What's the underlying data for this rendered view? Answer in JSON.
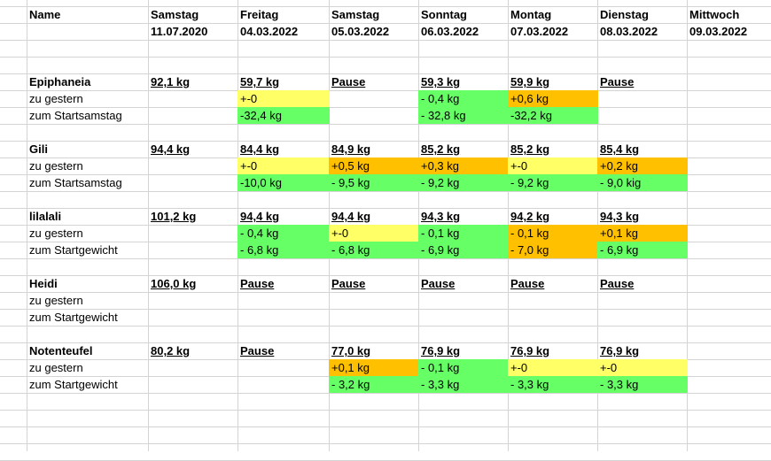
{
  "header": {
    "name": "Name",
    "days": [
      "Samstag",
      "Freitag",
      "Samstag",
      "Sonntag",
      "Montag",
      "Dienstag",
      "Mittwoch"
    ],
    "dates": [
      "11.07.2020",
      "04.03.2022",
      "05.03.2022",
      "06.03.2022",
      "07.03.2022",
      "08.03.2022",
      "09.03.2022"
    ]
  },
  "fill_colors": {
    "green": "#66ff66",
    "yellow": "#ffff66",
    "orange": "#ffc000"
  },
  "groups": [
    {
      "name": "Epiphaneia",
      "values": [
        "92,1 kg",
        "59,7 kg",
        "Pause",
        "59,3 kg",
        "59,9 kg",
        "Pause",
        ""
      ],
      "rows": [
        {
          "label": "zu gestern",
          "cells": [
            "",
            "+-0",
            "",
            "- 0,4 kg",
            "+0,6 kg",
            "",
            ""
          ],
          "fills": [
            "",
            "yellow",
            "",
            "green",
            "orange",
            "",
            ""
          ]
        },
        {
          "label": "zum Startsamstag",
          "cells": [
            "",
            "-32,4 kg",
            "",
            "- 32,8 kg",
            "-32,2 kg",
            "",
            ""
          ],
          "fills": [
            "",
            "green",
            "",
            "green",
            "green",
            "",
            ""
          ]
        }
      ]
    },
    {
      "name": "Gili",
      "values": [
        "94,4 kg",
        "84,4 kg",
        "84,9 kg",
        "85,2 kg",
        "85,2 kg",
        "85,4 kg",
        ""
      ],
      "rows": [
        {
          "label": "zu gestern",
          "cells": [
            "",
            "+-0",
            "+0,5 kg",
            "+0,3 kg",
            "+-0",
            "+0,2 kg",
            ""
          ],
          "fills": [
            "",
            "yellow",
            "orange",
            "orange",
            "yellow",
            "orange",
            ""
          ]
        },
        {
          "label": "zum Startsamstag",
          "cells": [
            "",
            "-10,0 kg",
            "- 9,5 kg",
            "- 9,2 kg",
            "- 9,2 kg",
            "- 9,0 kig",
            ""
          ],
          "fills": [
            "",
            "green",
            "green",
            "green",
            "green",
            "green",
            ""
          ]
        }
      ]
    },
    {
      "name": "lilalali",
      "values": [
        "101,2 kg",
        "94,4 kg",
        "94,4 kg",
        "94,3 kg",
        "94,2 kg",
        "94,3 kg",
        ""
      ],
      "rows": [
        {
          "label": "zu gestern",
          "cells": [
            "",
            "- 0,4 kg",
            "+-0",
            "- 0,1 kg",
            "- 0,1 kg",
            "+0,1 kg",
            ""
          ],
          "fills": [
            "",
            "green",
            "yellow",
            "green",
            "orange",
            "orange",
            ""
          ]
        },
        {
          "label": "zum Startgewicht",
          "cells": [
            "",
            "- 6,8 kg",
            "- 6,8 kg",
            "- 6,9 kg",
            "- 7,0 kg",
            "- 6,9 kg",
            ""
          ],
          "fills": [
            "",
            "green",
            "green",
            "green",
            "orange",
            "green",
            ""
          ]
        }
      ]
    },
    {
      "name": "Heidi",
      "values": [
        "106,0 kg",
        "Pause",
        "Pause",
        "Pause",
        "Pause",
        "Pause",
        ""
      ],
      "rows": [
        {
          "label": "zu gestern",
          "cells": [
            "",
            "",
            "",
            "",
            "",
            "",
            ""
          ],
          "fills": [
            "",
            "",
            "",
            "",
            "",
            "",
            ""
          ]
        },
        {
          "label": "zum Startgewicht",
          "cells": [
            "",
            "",
            "",
            "",
            "",
            "",
            ""
          ],
          "fills": [
            "",
            "",
            "",
            "",
            "",
            "",
            ""
          ]
        }
      ]
    },
    {
      "name": "Notenteufel",
      "values": [
        "80,2 kg",
        "Pause",
        "77,0 kg",
        "76,9 kg",
        "76,9  kg",
        "76,9 kg",
        ""
      ],
      "rows": [
        {
          "label": "zu gestern",
          "cells": [
            "",
            "",
            "+0,1 kg",
            "- 0,1 kg",
            "+-0",
            "+-0",
            ""
          ],
          "fills": [
            "",
            "",
            "orange",
            "green",
            "yellow",
            "yellow",
            ""
          ]
        },
        {
          "label": "zum Startgewicht",
          "cells": [
            "",
            "",
            "- 3,2 kg",
            "- 3,3 kg",
            "- 3,3 kg",
            "- 3,3 kg",
            ""
          ],
          "fills": [
            "",
            "",
            "green",
            "green",
            "green",
            "green",
            ""
          ]
        }
      ]
    }
  ]
}
